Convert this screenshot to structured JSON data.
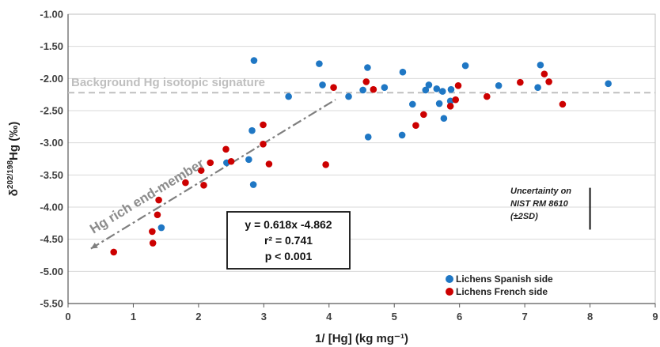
{
  "chart_data": {
    "type": "scatter",
    "xlabel": "1/ [Hg] (kg mg⁻¹)",
    "ylabel_prefix": "δ",
    "ylabel_sup": "202/198",
    "ylabel_suffix": "Hg (‰)",
    "xlim": [
      0,
      9
    ],
    "ylim": [
      -5.5,
      -1.0
    ],
    "xticks": [
      0,
      1,
      2,
      3,
      4,
      5,
      6,
      7,
      8,
      9
    ],
    "yticks": [
      -5.5,
      -5.0,
      -4.5,
      -4.0,
      -3.5,
      -3.0,
      -2.5,
      -2.0,
      -1.5,
      -1.0
    ],
    "ytick_labels": [
      "-5.50",
      "-5.00",
      "-4.50",
      "-4.00",
      "-3.50",
      "-3.00",
      "-2.50",
      "-2.00",
      "-1.50",
      "-1.00"
    ],
    "grid": "horizontal",
    "legend_position": "bottom-right",
    "series": [
      {
        "name": "Lichens Spanish side",
        "color": "#1f77c4",
        "points": [
          [
            1.43,
            -4.32
          ],
          [
            2.43,
            -3.31
          ],
          [
            2.77,
            -3.26
          ],
          [
            2.82,
            -2.81
          ],
          [
            2.84,
            -3.65
          ],
          [
            2.85,
            -1.72
          ],
          [
            3.38,
            -2.28
          ],
          [
            3.85,
            -1.77
          ],
          [
            3.9,
            -2.1
          ],
          [
            4.3,
            -2.28
          ],
          [
            4.52,
            -2.18
          ],
          [
            4.59,
            -1.83
          ],
          [
            4.6,
            -2.91
          ],
          [
            4.85,
            -2.14
          ],
          [
            5.12,
            -2.88
          ],
          [
            5.13,
            -1.9
          ],
          [
            5.28,
            -2.4
          ],
          [
            5.48,
            -2.18
          ],
          [
            5.53,
            -2.1
          ],
          [
            5.65,
            -2.16
          ],
          [
            5.69,
            -2.39
          ],
          [
            5.74,
            -2.2
          ],
          [
            5.76,
            -2.62
          ],
          [
            5.86,
            -2.35
          ],
          [
            5.87,
            -2.17
          ],
          [
            6.09,
            -1.8
          ],
          [
            6.6,
            -2.11
          ],
          [
            7.2,
            -2.14
          ],
          [
            7.24,
            -1.79
          ],
          [
            8.28,
            -2.08
          ]
        ]
      },
      {
        "name": "Lichens French side",
        "color": "#cc0000",
        "points": [
          [
            0.7,
            -4.7
          ],
          [
            1.29,
            -4.38
          ],
          [
            1.3,
            -4.56
          ],
          [
            1.37,
            -4.12
          ],
          [
            1.39,
            -3.89
          ],
          [
            1.8,
            -3.62
          ],
          [
            2.04,
            -3.43
          ],
          [
            2.08,
            -3.66
          ],
          [
            2.18,
            -3.31
          ],
          [
            2.42,
            -3.1
          ],
          [
            2.5,
            -3.29
          ],
          [
            2.99,
            -2.72
          ],
          [
            2.99,
            -3.02
          ],
          [
            3.08,
            -3.33
          ],
          [
            3.95,
            -3.34
          ],
          [
            4.07,
            -2.14
          ],
          [
            4.57,
            -2.05
          ],
          [
            4.68,
            -2.17
          ],
          [
            5.33,
            -2.73
          ],
          [
            5.45,
            -2.56
          ],
          [
            5.86,
            -2.43
          ],
          [
            5.94,
            -2.33
          ],
          [
            5.98,
            -2.11
          ],
          [
            6.42,
            -2.28
          ],
          [
            6.93,
            -2.06
          ],
          [
            7.3,
            -1.93
          ],
          [
            7.37,
            -2.05
          ],
          [
            7.58,
            -2.4
          ]
        ]
      }
    ],
    "lines": {
      "background": {
        "y": -2.22,
        "color": "#bfbfbf"
      },
      "regression": {
        "slope": 0.618,
        "intercept": -4.862,
        "x_from": 0.35,
        "x_to": 4.1,
        "color": "#7f7f7f"
      }
    },
    "annotations": {
      "background_label": "Background Hg isotopic signature",
      "rich_label": "Hg rich end-member",
      "stats_lines": [
        "y = 0.618x -4.862",
        "r² = 0.741",
        "p < 0.001"
      ],
      "uncertainty_lines": [
        "Uncertainty on",
        "NIST RM 8610",
        "(±2SD)"
      ],
      "uncertainty_bar": {
        "x": 8.0,
        "y_from": -3.7,
        "y_to": -4.35
      }
    }
  }
}
